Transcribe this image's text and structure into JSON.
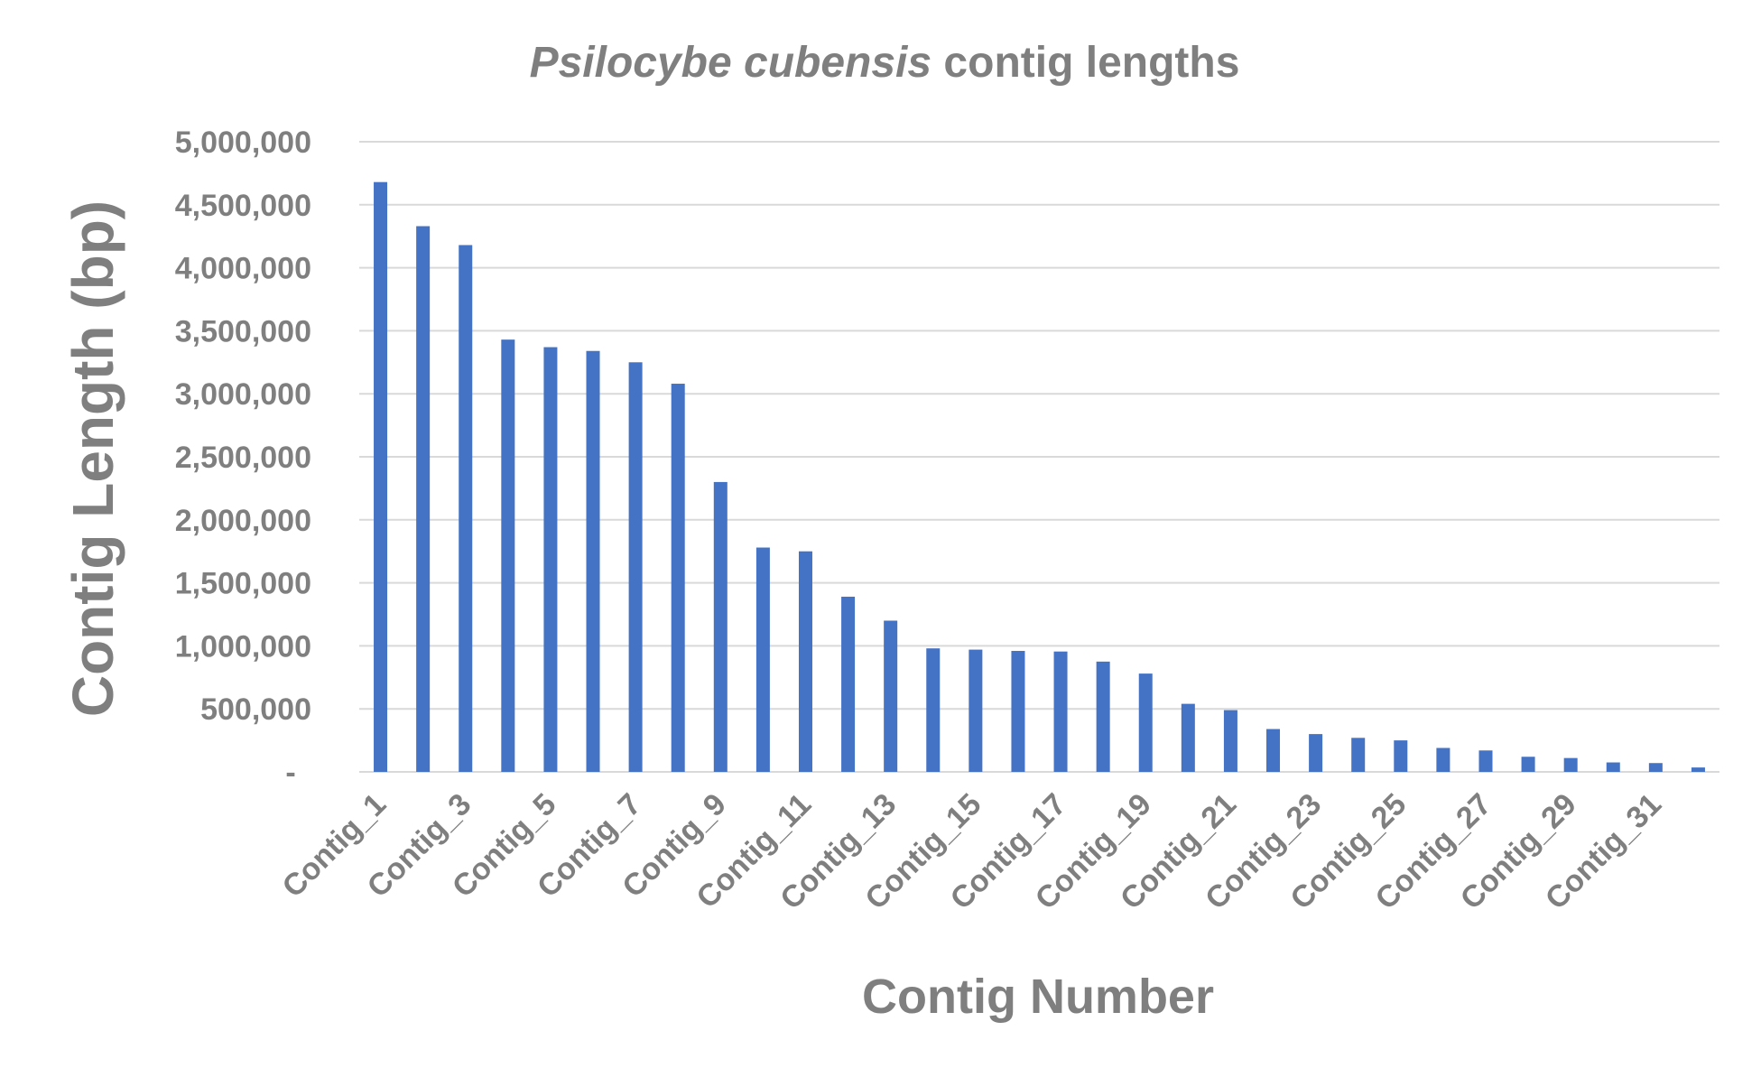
{
  "chart_data": {
    "type": "bar",
    "title_italic": "Psilocybe cubensis",
    "title_rest": " contig lengths",
    "xlabel": "Contig Number",
    "ylabel": "Contig Length (bp)",
    "ylim": [
      0,
      5000000
    ],
    "yticks": [
      0,
      500000,
      1000000,
      1500000,
      2000000,
      2500000,
      3000000,
      3500000,
      4000000,
      4500000,
      5000000
    ],
    "ytick_labels": [
      "-",
      "500,000",
      "1,000,000",
      "1,500,000",
      "2,000,000",
      "2,500,000",
      "3,000,000",
      "3,500,000",
      "4,000,000",
      "4,500,000",
      "5,000,000"
    ],
    "grid": true,
    "series_color": "#4472c4",
    "categories": [
      "Contig_1",
      "Contig_2",
      "Contig_3",
      "Contig_4",
      "Contig_5",
      "Contig_6",
      "Contig_7",
      "Contig_8",
      "Contig_9",
      "Contig_10",
      "Contig_11",
      "Contig_12",
      "Contig_13",
      "Contig_14",
      "Contig_15",
      "Contig_16",
      "Contig_17",
      "Contig_18",
      "Contig_19",
      "Contig_20",
      "Contig_21",
      "Contig_22",
      "Contig_23",
      "Contig_24",
      "Contig_25",
      "Contig_26",
      "Contig_27",
      "Contig_28",
      "Contig_29",
      "Contig_30",
      "Contig_31",
      "Contig_32"
    ],
    "shown_category_labels": [
      "Contig_1",
      "Contig_3",
      "Contig_5",
      "Contig_7",
      "Contig_9",
      "Contig_11",
      "Contig_13",
      "Contig_15",
      "Contig_17",
      "Contig_19",
      "Contig_21",
      "Contig_23",
      "Contig_25",
      "Contig_27",
      "Contig_29",
      "Contig_31"
    ],
    "values": [
      4680000,
      4330000,
      4180000,
      3430000,
      3370000,
      3340000,
      3250000,
      3080000,
      2300000,
      1780000,
      1750000,
      1390000,
      1200000,
      980000,
      970000,
      960000,
      955000,
      875000,
      780000,
      540000,
      490000,
      340000,
      300000,
      270000,
      250000,
      190000,
      170000,
      120000,
      110000,
      75000,
      70000,
      35000
    ]
  }
}
